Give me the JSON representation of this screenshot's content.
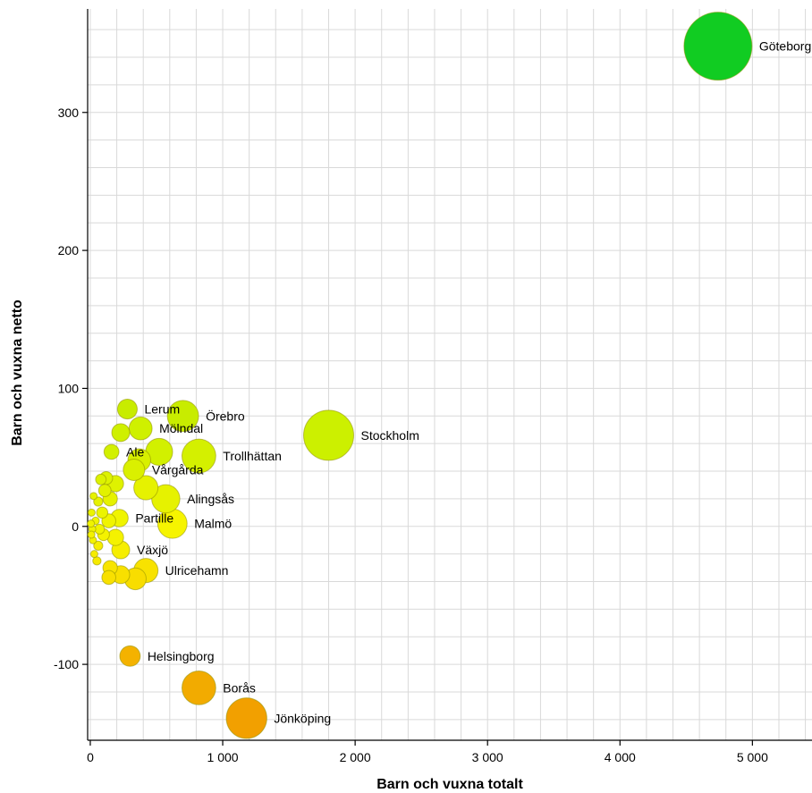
{
  "chart_data": {
    "type": "scatter",
    "xlabel": "Barn och vuxna totalt",
    "ylabel": "Barn och vuxna netto",
    "xlim": [
      -20,
      5450
    ],
    "ylim": [
      -155,
      375
    ],
    "x_ticks": [
      0,
      1000,
      2000,
      3000,
      4000,
      5000
    ],
    "x_tick_labels": [
      "0",
      "1 000",
      "2 000",
      "3 000",
      "4 000",
      "5 000"
    ],
    "y_ticks": [
      -100,
      0,
      100,
      200,
      300
    ],
    "y_tick_labels": [
      "-100",
      "0",
      "100",
      "200",
      "300"
    ],
    "grid": true,
    "bubble_size_encodes": "Barn och vuxna totalt",
    "color_encodes": "Barn och vuxna netto",
    "points": [
      {
        "name": "Göteborg",
        "x": 4740,
        "y": 348,
        "color": "#11cc22",
        "labeled": true
      },
      {
        "name": "Stockholm",
        "x": 1800,
        "y": 66,
        "color": "#ccf000",
        "labeled": true
      },
      {
        "name": "Malmö",
        "x": 620,
        "y": 2,
        "color": "#f6f400",
        "labeled": true
      },
      {
        "name": "Jönköping",
        "x": 1180,
        "y": -139,
        "color": "#f2a000",
        "labeled": true
      },
      {
        "name": "Borås",
        "x": 820,
        "y": -117,
        "color": "#f2ab00",
        "labeled": true
      },
      {
        "name": "Helsingborg",
        "x": 300,
        "y": -94,
        "color": "#f4b200",
        "labeled": true
      },
      {
        "name": "Örebro",
        "x": 700,
        "y": 80,
        "color": "#c8ec00",
        "labeled": true
      },
      {
        "name": "Lerum",
        "x": 280,
        "y": 85,
        "color": "#c8ec00",
        "labeled": true
      },
      {
        "name": "Mölndal",
        "x": 380,
        "y": 71,
        "color": "#cff000",
        "labeled": true
      },
      {
        "name": "Trollhättan",
        "x": 820,
        "y": 51,
        "color": "#d4f000",
        "labeled": true
      },
      {
        "name": "Ale",
        "x": 160,
        "y": 54,
        "color": "#d2f000",
        "labeled": true
      },
      {
        "name": "Vårgårda",
        "x": 330,
        "y": 41,
        "color": "#daf000",
        "labeled": true
      },
      {
        "name": "Alingsås",
        "x": 570,
        "y": 20,
        "color": "#e6f200",
        "labeled": true
      },
      {
        "name": "Partille",
        "x": 220,
        "y": 6,
        "color": "#f0f400",
        "labeled": true
      },
      {
        "name": "Växjö",
        "x": 230,
        "y": -17,
        "color": "#f6ee00",
        "labeled": true
      },
      {
        "name": "Ulricehamn",
        "x": 420,
        "y": -32,
        "color": "#f8e200",
        "labeled": true
      },
      {
        "name": "",
        "x": 230,
        "y": 68,
        "color": "#cff000",
        "labeled": false
      },
      {
        "name": "",
        "x": 520,
        "y": 54,
        "color": "#d2f000",
        "labeled": false
      },
      {
        "name": "",
        "x": 420,
        "y": 28,
        "color": "#e6f200",
        "labeled": false
      },
      {
        "name": "",
        "x": 120,
        "y": 35,
        "color": "#dcf200",
        "labeled": false
      },
      {
        "name": "",
        "x": 80,
        "y": 34,
        "color": "#dcf200",
        "labeled": false
      },
      {
        "name": "",
        "x": 60,
        "y": 18,
        "color": "#e6f200",
        "labeled": false
      },
      {
        "name": "",
        "x": 150,
        "y": 20,
        "color": "#e6f200",
        "labeled": false
      },
      {
        "name": "",
        "x": 90,
        "y": 10,
        "color": "#ecf400",
        "labeled": false
      },
      {
        "name": "",
        "x": 140,
        "y": 4,
        "color": "#f0f400",
        "labeled": false
      },
      {
        "name": "",
        "x": 40,
        "y": 4,
        "color": "#f0f400",
        "labeled": false
      },
      {
        "name": "",
        "x": 100,
        "y": -6,
        "color": "#f4f200",
        "labeled": false
      },
      {
        "name": "",
        "x": 60,
        "y": -14,
        "color": "#f6ee00",
        "labeled": false
      },
      {
        "name": "",
        "x": 30,
        "y": -20,
        "color": "#f6ec00",
        "labeled": false
      },
      {
        "name": "",
        "x": 150,
        "y": -30,
        "color": "#f8e400",
        "labeled": false
      },
      {
        "name": "",
        "x": 140,
        "y": -37,
        "color": "#f8e000",
        "labeled": false
      },
      {
        "name": "",
        "x": 230,
        "y": -35,
        "color": "#f8e000",
        "labeled": false
      },
      {
        "name": "",
        "x": 340,
        "y": -38,
        "color": "#f8dd00",
        "labeled": false
      },
      {
        "name": "",
        "x": 20,
        "y": -10,
        "color": "#f4f200",
        "labeled": false
      },
      {
        "name": "",
        "x": 10,
        "y": 10,
        "color": "#ecf400",
        "labeled": false
      },
      {
        "name": "",
        "x": 15,
        "y": -2,
        "color": "#f0f400",
        "labeled": false
      },
      {
        "name": "",
        "x": 5,
        "y": 2,
        "color": "#f0f400",
        "labeled": false
      },
      {
        "name": "",
        "x": 8,
        "y": -6,
        "color": "#f4f200",
        "labeled": false
      },
      {
        "name": "",
        "x": 25,
        "y": 22,
        "color": "#e6f200",
        "labeled": false
      },
      {
        "name": "",
        "x": 190,
        "y": 31,
        "color": "#dff200",
        "labeled": false
      },
      {
        "name": "",
        "x": 370,
        "y": 48,
        "color": "#d8f000",
        "labeled": false
      },
      {
        "name": "",
        "x": 190,
        "y": -8,
        "color": "#f4f200",
        "labeled": false
      },
      {
        "name": "",
        "x": 50,
        "y": -25,
        "color": "#f6ea00",
        "labeled": false
      },
      {
        "name": "",
        "x": 110,
        "y": 26,
        "color": "#e2f200",
        "labeled": false
      },
      {
        "name": "",
        "x": 70,
        "y": -2,
        "color": "#f0f400",
        "labeled": false
      }
    ]
  }
}
